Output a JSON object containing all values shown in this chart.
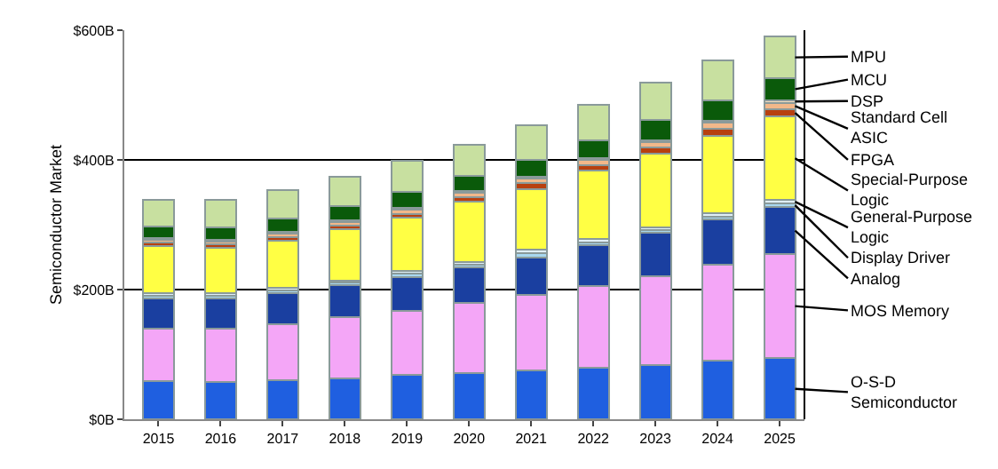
{
  "chart_data": {
    "type": "bar",
    "stacked": true,
    "ylabel": "Semiconductor Market",
    "categories": [
      "2015",
      "2016",
      "2017",
      "2018",
      "2019",
      "2020",
      "2021",
      "2022",
      "2023",
      "2024",
      "2025"
    ],
    "ylim": [
      0,
      600
    ],
    "yticks": [
      {
        "value": 0,
        "label": "$0B"
      },
      {
        "value": 200,
        "label": "$200B"
      },
      {
        "value": 400,
        "label": "$400B"
      },
      {
        "value": 600,
        "label": "$600B"
      }
    ],
    "grid": "y",
    "legend": false,
    "series": [
      {
        "name": "O-S-D Semiconductor",
        "color": "#1f5fe0",
        "values": [
          59,
          57,
          60,
          63,
          68,
          71,
          76,
          80,
          84,
          90,
          94
        ]
      },
      {
        "name": "MOS Memory",
        "color": "#f4a6f7",
        "values": [
          81,
          83,
          87,
          94,
          99,
          108,
          116,
          126,
          137,
          148,
          161
        ]
      },
      {
        "name": "Analog",
        "color": "#1a3fa0",
        "values": [
          46,
          46,
          48,
          50,
          52,
          55,
          58,
          62,
          67,
          70,
          72
        ]
      },
      {
        "name": "Display Driver",
        "color": "#a8d8f0",
        "values": [
          5,
          4,
          4,
          4,
          6,
          5,
          6,
          5,
          4,
          5,
          6
        ]
      },
      {
        "name": "General-Purpose Logic",
        "color": "#dfeef6",
        "values": [
          4,
          4,
          4,
          3,
          4,
          4,
          5,
          5,
          4,
          5,
          5
        ]
      },
      {
        "name": "Special-Purpose Logic",
        "color": "#ffff44",
        "values": [
          72,
          70,
          72,
          79,
          82,
          92,
          94,
          106,
          113,
          119,
          129
        ]
      },
      {
        "name": "FPGA",
        "color": "#b8400f",
        "values": [
          6,
          6,
          6,
          6,
          6,
          7,
          9,
          8,
          10,
          11,
          11
        ]
      },
      {
        "name": "Standard Cell ASIC",
        "color": "#f2b88a",
        "values": [
          4,
          4,
          5,
          5,
          6,
          7,
          7,
          8,
          8,
          9,
          10
        ]
      },
      {
        "name": "DSP",
        "color": "#f5dfc0",
        "values": [
          3,
          3,
          3,
          3,
          3,
          3,
          3,
          3,
          3,
          3,
          4
        ]
      },
      {
        "name": "MCU",
        "color": "#0a5a0a",
        "values": [
          17,
          19,
          20,
          22,
          25,
          23,
          26,
          27,
          31,
          32,
          34
        ]
      },
      {
        "name": "MPU",
        "color": "#c8e0a0",
        "values": [
          42,
          42,
          44,
          45,
          47,
          48,
          53,
          55,
          58,
          62,
          64
        ]
      }
    ]
  }
}
